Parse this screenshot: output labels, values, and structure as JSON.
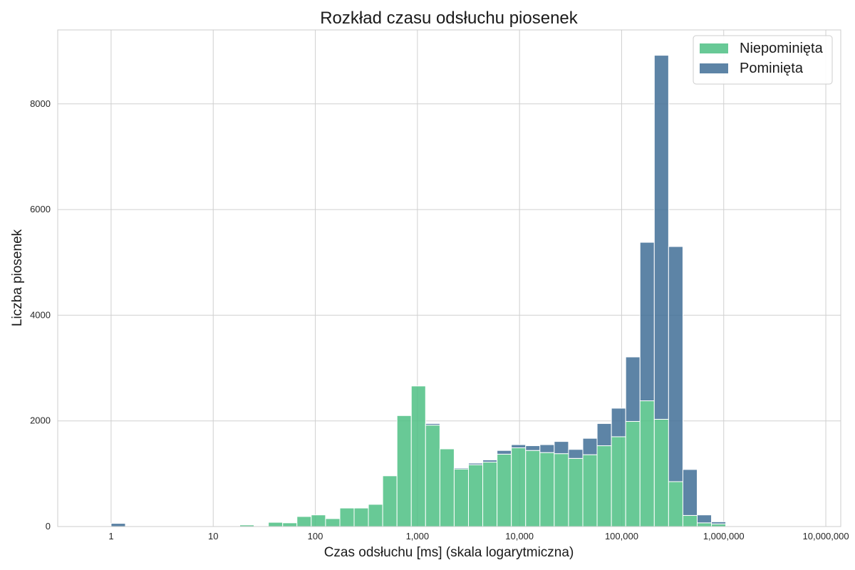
{
  "chart_data": {
    "type": "bar",
    "stacked": true,
    "title": "Rozkład czasu odsłuchu piosenek",
    "xlabel": "Czas odsłuchu [ms] (skala logarytmiczna)",
    "ylabel": "Liczba piosenek",
    "x_scale": "log",
    "xlim": [
      0.3,
      14000000
    ],
    "ylim": [
      0,
      9400
    ],
    "grid": true,
    "legend_position": "top-right",
    "x_ticks": [
      {
        "value": 1,
        "label": "1"
      },
      {
        "value": 10,
        "label": "10"
      },
      {
        "value": 100,
        "label": "100"
      },
      {
        "value": 1000,
        "label": "1,000"
      },
      {
        "value": 10000,
        "label": "10,000"
      },
      {
        "value": 100000,
        "label": "100,000"
      },
      {
        "value": 1000000,
        "label": "1,000,000"
      },
      {
        "value": 10000000,
        "label": "10,000,000"
      }
    ],
    "y_ticks": [
      {
        "value": 0,
        "label": "0"
      },
      {
        "value": 2000,
        "label": "2000"
      },
      {
        "value": 4000,
        "label": "4000"
      },
      {
        "value": 6000,
        "label": "6000"
      },
      {
        "value": 8000,
        "label": "8000"
      }
    ],
    "bin_edges": [
      1,
      1.38,
      1.91,
      2.63,
      3.63,
      5.01,
      6.92,
      9.55,
      13.2,
      18.2,
      25.1,
      34.7,
      47.9,
      66.1,
      91.2,
      126,
      174,
      240,
      331,
      457,
      631,
      871,
      1202,
      1660,
      2291,
      3162,
      4365,
      6026,
      8318,
      11482,
      15849,
      21878,
      30200,
      41687,
      57544,
      79433,
      109648,
      151356,
      208930,
      288403,
      398107,
      549541,
      758578,
      1047129,
      1445440
    ],
    "series": [
      {
        "name": "Niepominięta",
        "color": "#4dbf84",
        "values": [
          0,
          0,
          0,
          0,
          0,
          0,
          0,
          0,
          0,
          30,
          0,
          80,
          70,
          190,
          220,
          150,
          350,
          350,
          420,
          960,
          2100,
          2660,
          1920,
          1470,
          1090,
          1170,
          1220,
          1370,
          1490,
          1440,
          1400,
          1380,
          1290,
          1360,
          1530,
          1700,
          1990,
          2380,
          2030,
          850,
          210,
          70,
          50,
          10
        ]
      },
      {
        "name": "Pominięta",
        "color": "#416f96",
        "values": [
          60,
          0,
          0,
          0,
          0,
          0,
          0,
          0,
          0,
          0,
          0,
          0,
          0,
          0,
          0,
          0,
          0,
          0,
          0,
          0,
          0,
          0,
          30,
          0,
          20,
          30,
          40,
          70,
          60,
          90,
          150,
          230,
          170,
          310,
          420,
          540,
          1220,
          3000,
          6890,
          4450,
          870,
          150,
          40,
          0
        ]
      }
    ]
  }
}
